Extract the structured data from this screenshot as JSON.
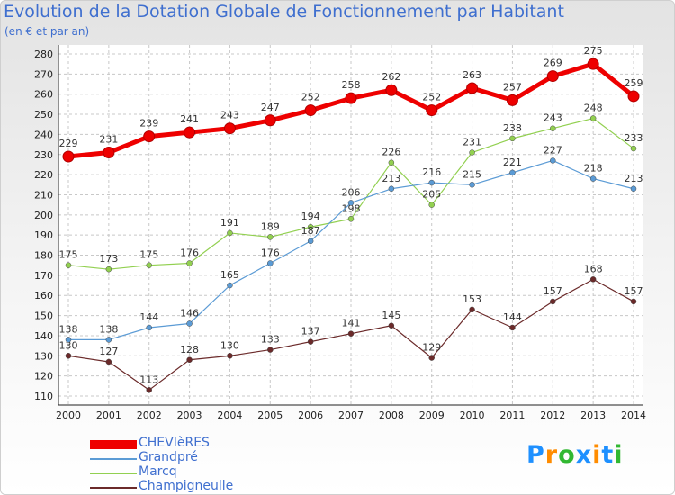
{
  "chart_data": {
    "type": "line",
    "title": "Evolution de la Dotation Globale de Fonctionnement par Habitant",
    "subtitle": "(en € et par an)",
    "x": [
      2000,
      2001,
      2002,
      2003,
      2004,
      2005,
      2006,
      2007,
      2008,
      2009,
      2010,
      2011,
      2012,
      2013,
      2014
    ],
    "ylim": [
      110,
      280
    ],
    "yticks": [
      110,
      120,
      130,
      140,
      150,
      160,
      170,
      180,
      190,
      200,
      210,
      220,
      230,
      240,
      250,
      260,
      270,
      280
    ],
    "grid": true,
    "legend_position": "bottom-left",
    "series": [
      {
        "name": "CHEVIèRES",
        "color": "#ee0000",
        "values": [
          229,
          231,
          239,
          241,
          243,
          247,
          252,
          258,
          262,
          252,
          263,
          257,
          269,
          275,
          259
        ]
      },
      {
        "name": "Grandpré",
        "color": "#5b9bd5",
        "values": [
          138,
          138,
          144,
          146,
          165,
          176,
          187,
          206,
          213,
          216,
          215,
          221,
          227,
          218,
          213
        ]
      },
      {
        "name": "Marcq",
        "color": "#92d050",
        "values": [
          175,
          173,
          175,
          176,
          191,
          189,
          194,
          198,
          226,
          205,
          231,
          238,
          243,
          248,
          233
        ]
      },
      {
        "name": "Champigneulle",
        "color": "#6b2a2a",
        "values": [
          130,
          127,
          113,
          128,
          130,
          133,
          137,
          141,
          145,
          129,
          153,
          144,
          157,
          168,
          157
        ]
      }
    ]
  },
  "logo": {
    "letters": [
      "P",
      "r",
      "o",
      "x",
      "i",
      "t",
      "i"
    ],
    "colors": [
      "#1e90ff",
      "#ff8c00",
      "#32b832",
      "#1e90ff",
      "#ff8c00",
      "#1e90ff",
      "#32b832"
    ]
  }
}
